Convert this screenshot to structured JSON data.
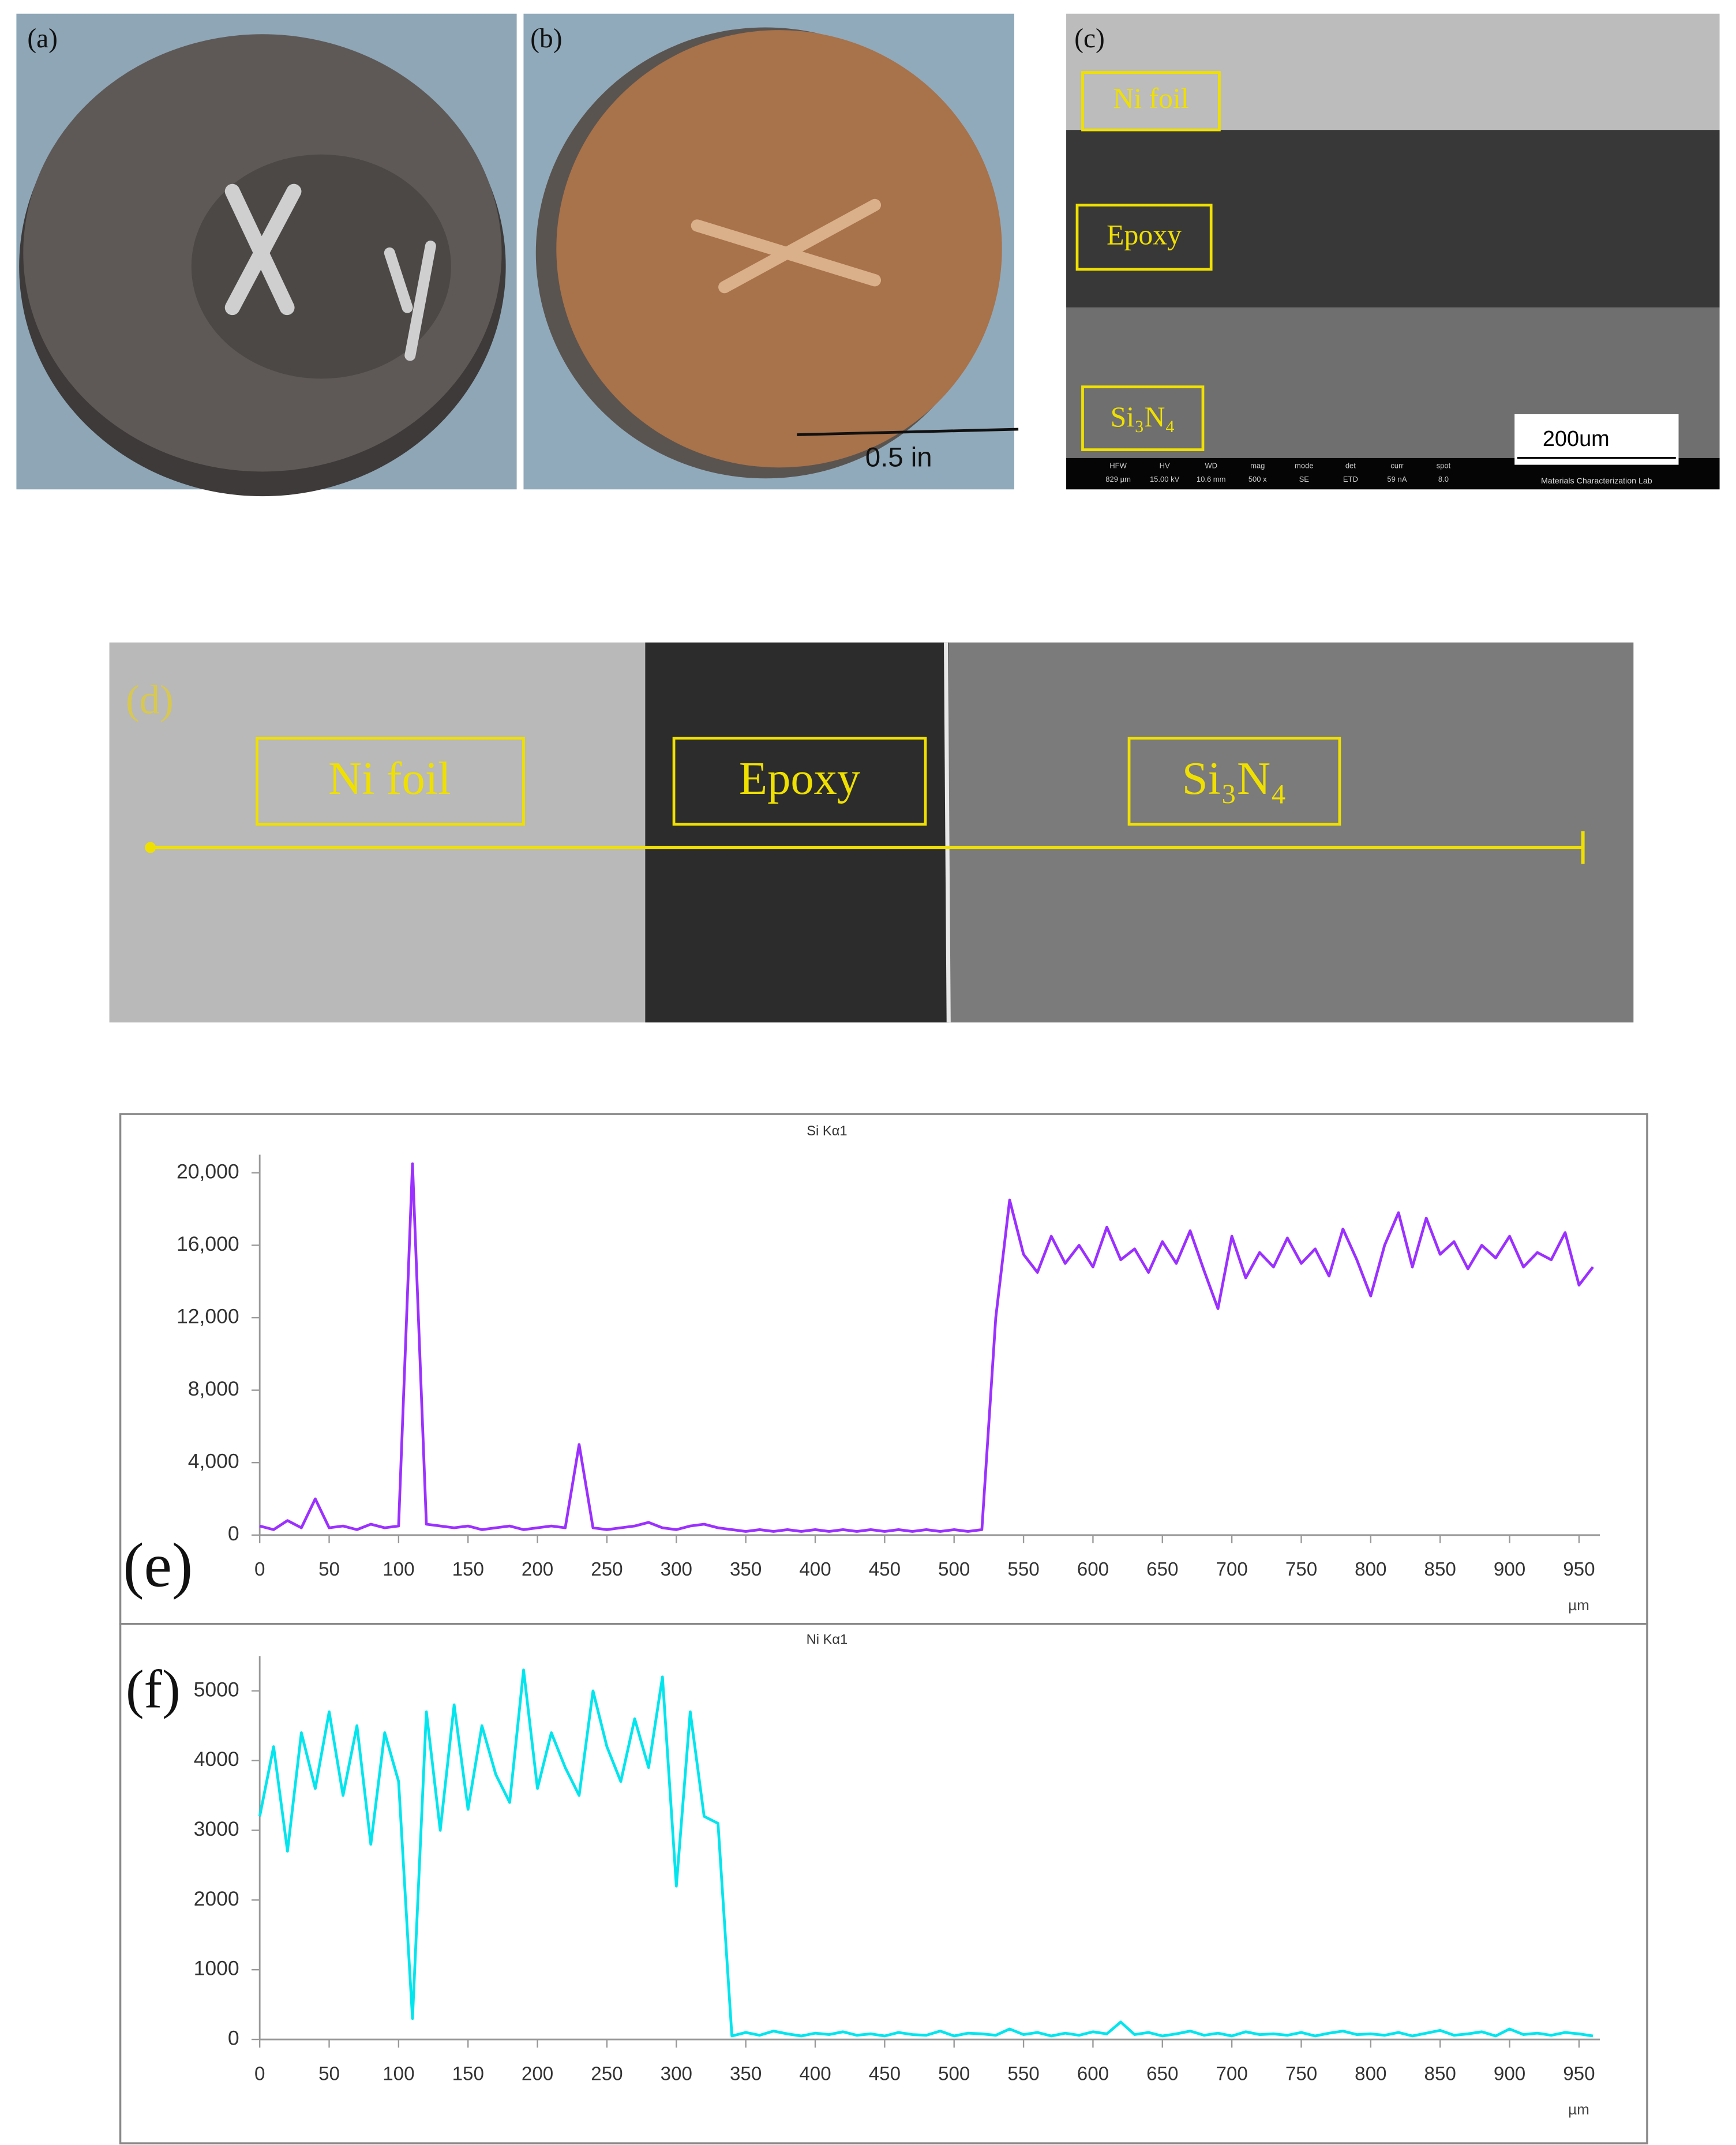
{
  "panels": {
    "a": {
      "label": "(a)"
    },
    "b": {
      "label": "(b)",
      "scale": "0.5 in"
    },
    "c": {
      "label": "(c)",
      "layers": [
        "Ni foil",
        "Epoxy",
        "Si₃N₄"
      ],
      "scale": "200um",
      "info": [
        {
          "k": "HFW",
          "v": "829 µm"
        },
        {
          "k": "HV",
          "v": "15.00 kV"
        },
        {
          "k": "WD",
          "v": "10.6 mm"
        },
        {
          "k": "mag",
          "v": "500 x"
        },
        {
          "k": "mode",
          "v": "SE"
        },
        {
          "k": "det",
          "v": "ETD"
        },
        {
          "k": "curr",
          "v": "59 nA"
        },
        {
          "k": "spot",
          "v": "8.0"
        }
      ],
      "lab": "Materials Characterization Lab"
    },
    "d": {
      "label": "(d)",
      "layers": [
        "Ni foil",
        "Epoxy",
        "Si₃N₄"
      ]
    }
  },
  "chart_data": [
    {
      "type": "line",
      "label": "(e)",
      "title": "Si Kα1",
      "xlabel": "µm",
      "x": [
        0,
        10,
        20,
        30,
        40,
        50,
        60,
        70,
        80,
        90,
        100,
        110,
        120,
        130,
        140,
        150,
        160,
        170,
        180,
        190,
        200,
        210,
        220,
        230,
        240,
        250,
        260,
        270,
        280,
        290,
        300,
        310,
        320,
        330,
        340,
        350,
        360,
        370,
        380,
        390,
        400,
        410,
        420,
        430,
        440,
        450,
        460,
        470,
        480,
        490,
        500,
        510,
        520,
        530,
        540,
        550,
        560,
        570,
        580,
        590,
        600,
        610,
        620,
        630,
        640,
        650,
        660,
        670,
        680,
        690,
        700,
        710,
        720,
        730,
        740,
        750,
        760,
        770,
        780,
        790,
        800,
        810,
        820,
        830,
        840,
        850,
        860,
        870,
        880,
        890,
        900,
        910,
        920,
        930,
        940,
        950,
        960
      ],
      "series": [
        {
          "name": "Si Kα1",
          "color": "#9b30ff",
          "values": [
            500,
            300,
            800,
            400,
            2000,
            400,
            500,
            300,
            600,
            400,
            500,
            20500,
            600,
            500,
            400,
            500,
            300,
            400,
            500,
            300,
            400,
            500,
            400,
            5000,
            400,
            300,
            400,
            500,
            700,
            400,
            300,
            500,
            600,
            400,
            300,
            200,
            300,
            200,
            300,
            200,
            300,
            200,
            300,
            200,
            300,
            200,
            300,
            200,
            300,
            200,
            300,
            200,
            300,
            12000,
            18500,
            15500,
            14500,
            16500,
            15000,
            16000,
            14800,
            17000,
            15200,
            15800,
            14500,
            16200,
            15000,
            16800,
            14600,
            12500,
            16500,
            14200,
            15600,
            14800,
            16400,
            15000,
            15800,
            14300,
            16900,
            15200,
            13200,
            16000,
            17800,
            14800,
            17500,
            15500,
            16200,
            14700,
            16000,
            15300,
            16500,
            14800,
            15600,
            15200,
            16700,
            13800,
            14800
          ]
        }
      ],
      "xlim": [
        0,
        965
      ],
      "xticks": [
        0,
        50,
        100,
        150,
        200,
        250,
        300,
        350,
        400,
        450,
        500,
        550,
        600,
        650,
        700,
        750,
        800,
        850,
        900,
        950
      ],
      "ylim": [
        0,
        21000
      ],
      "yticks": [
        0,
        {
          "value": 4000,
          "label": "4,000"
        },
        {
          "value": 8000,
          "label": "8,000"
        },
        {
          "value": 12000,
          "label": "12,000"
        },
        {
          "value": 16000,
          "label": "16,000"
        },
        {
          "value": 20000,
          "label": "20,000"
        }
      ],
      "grid": false
    },
    {
      "type": "line",
      "label": "(f)",
      "title": "Ni Kα1",
      "xlabel": "µm",
      "x": [
        0,
        10,
        20,
        30,
        40,
        50,
        60,
        70,
        80,
        90,
        100,
        110,
        120,
        130,
        140,
        150,
        160,
        170,
        180,
        190,
        200,
        210,
        220,
        230,
        240,
        250,
        260,
        270,
        280,
        290,
        300,
        310,
        320,
        330,
        340,
        350,
        360,
        370,
        380,
        390,
        400,
        410,
        420,
        430,
        440,
        450,
        460,
        470,
        480,
        490,
        500,
        510,
        520,
        530,
        540,
        550,
        560,
        570,
        580,
        590,
        600,
        610,
        620,
        630,
        640,
        650,
        660,
        670,
        680,
        690,
        700,
        710,
        720,
        730,
        740,
        750,
        760,
        770,
        780,
        790,
        800,
        810,
        820,
        830,
        840,
        850,
        860,
        870,
        880,
        890,
        900,
        910,
        920,
        930,
        940,
        950,
        960
      ],
      "series": [
        {
          "name": "Ni Kα1",
          "color": "#00e5ee",
          "values": [
            3200,
            4200,
            2700,
            4400,
            3600,
            4700,
            3500,
            4500,
            2800,
            4400,
            3700,
            300,
            4700,
            3000,
            4800,
            3300,
            4500,
            3800,
            3400,
            5300,
            3600,
            4400,
            3900,
            3500,
            5000,
            4200,
            3700,
            4600,
            3900,
            5200,
            2200,
            4700,
            3200,
            3100,
            50,
            100,
            60,
            120,
            80,
            50,
            90,
            70,
            110,
            60,
            80,
            50,
            100,
            70,
            60,
            120,
            50,
            90,
            80,
            60,
            150,
            70,
            100,
            50,
            90,
            60,
            110,
            80,
            250,
            70,
            100,
            50,
            80,
            120,
            60,
            90,
            50,
            110,
            70,
            80,
            60,
            100,
            50,
            90,
            120,
            70,
            80,
            60,
            100,
            50,
            90,
            130,
            60,
            80,
            110,
            50,
            150,
            70,
            90,
            60,
            100,
            80,
            50
          ]
        }
      ],
      "xlim": [
        0,
        965
      ],
      "xticks": [
        0,
        50,
        100,
        150,
        200,
        250,
        300,
        350,
        400,
        450,
        500,
        550,
        600,
        650,
        700,
        750,
        800,
        850,
        900,
        950
      ],
      "ylim": [
        0,
        5500
      ],
      "yticks": [
        0,
        1000,
        2000,
        3000,
        4000,
        5000
      ],
      "grid": false
    }
  ]
}
